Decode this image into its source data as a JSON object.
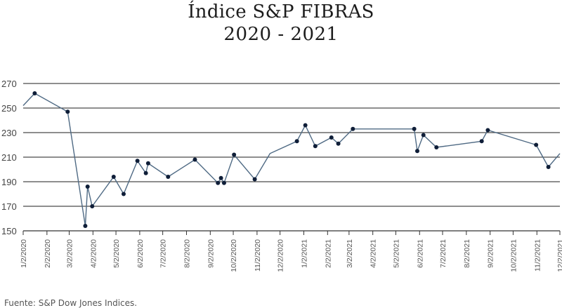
{
  "chart_data": {
    "type": "line",
    "title_line1": "Índice S&P FIBRAS",
    "title_line2": "2020 - 2021",
    "xlabel": "",
    "ylabel": "",
    "ylim": [
      150,
      270
    ],
    "yticks": [
      150,
      170,
      190,
      210,
      230,
      250,
      270
    ],
    "xtick_labels": [
      "1/2/2020",
      "2/2/2020",
      "3/2/2020",
      "4/2/2020",
      "5/2/2020",
      "6/2/2020",
      "7/2/2020",
      "8/2/2020",
      "9/2/2020",
      "10/2/2020",
      "11/2/2020",
      "12/2/2020",
      "1/2/2021",
      "2/2/2021",
      "3/2/2021",
      "4/2/2021",
      "5/2/2021",
      "6/2/2021",
      "7/2/2021",
      "8/2/2021",
      "9/2/2021",
      "10/2/2021",
      "11/2/2021",
      "12/2/2021"
    ],
    "x_range": [
      "2020-01-02",
      "2021-12-02"
    ],
    "grid": "horizontal",
    "line_color": "#4f6a84",
    "marker_color": "#0f1e38",
    "points": [
      {
        "x": "2020-01-02",
        "y": 252,
        "marker": false
      },
      {
        "x": "2020-01-17",
        "y": 262,
        "marker": true
      },
      {
        "x": "2020-02-29",
        "y": 247,
        "marker": true
      },
      {
        "x": "2020-03-23",
        "y": 154,
        "marker": true
      },
      {
        "x": "2020-03-26",
        "y": 186,
        "marker": true
      },
      {
        "x": "2020-04-01",
        "y": 170,
        "marker": true
      },
      {
        "x": "2020-04-29",
        "y": 194,
        "marker": true
      },
      {
        "x": "2020-05-12",
        "y": 180,
        "marker": true
      },
      {
        "x": "2020-05-30",
        "y": 207,
        "marker": true
      },
      {
        "x": "2020-06-10",
        "y": 197,
        "marker": true
      },
      {
        "x": "2020-06-13",
        "y": 205,
        "marker": true
      },
      {
        "x": "2020-07-09",
        "y": 194,
        "marker": true
      },
      {
        "x": "2020-08-13",
        "y": 208,
        "marker": true
      },
      {
        "x": "2020-09-12",
        "y": 189,
        "marker": true
      },
      {
        "x": "2020-09-16",
        "y": 193,
        "marker": true
      },
      {
        "x": "2020-09-20",
        "y": 189,
        "marker": true
      },
      {
        "x": "2020-10-03",
        "y": 212,
        "marker": true
      },
      {
        "x": "2020-10-30",
        "y": 192,
        "marker": true
      },
      {
        "x": "2020-11-19",
        "y": 213,
        "marker": false
      },
      {
        "x": "2020-12-24",
        "y": 223,
        "marker": true
      },
      {
        "x": "2021-01-04",
        "y": 236,
        "marker": true
      },
      {
        "x": "2021-01-17",
        "y": 219,
        "marker": true
      },
      {
        "x": "2021-02-07",
        "y": 226,
        "marker": true
      },
      {
        "x": "2021-02-16",
        "y": 221,
        "marker": true
      },
      {
        "x": "2021-03-07",
        "y": 233,
        "marker": true
      },
      {
        "x": "2021-05-26",
        "y": 233,
        "marker": true
      },
      {
        "x": "2021-05-30",
        "y": 215,
        "marker": true
      },
      {
        "x": "2021-06-07",
        "y": 228,
        "marker": true
      },
      {
        "x": "2021-06-24",
        "y": 218,
        "marker": true
      },
      {
        "x": "2021-08-22",
        "y": 223,
        "marker": true
      },
      {
        "x": "2021-08-30",
        "y": 232,
        "marker": true
      },
      {
        "x": "2021-11-01",
        "y": 220,
        "marker": true
      },
      {
        "x": "2021-11-17",
        "y": 202,
        "marker": true
      },
      {
        "x": "2021-12-02",
        "y": 213,
        "marker": false
      }
    ]
  },
  "source_text": "Fuente: S&P Dow Jones Indices."
}
